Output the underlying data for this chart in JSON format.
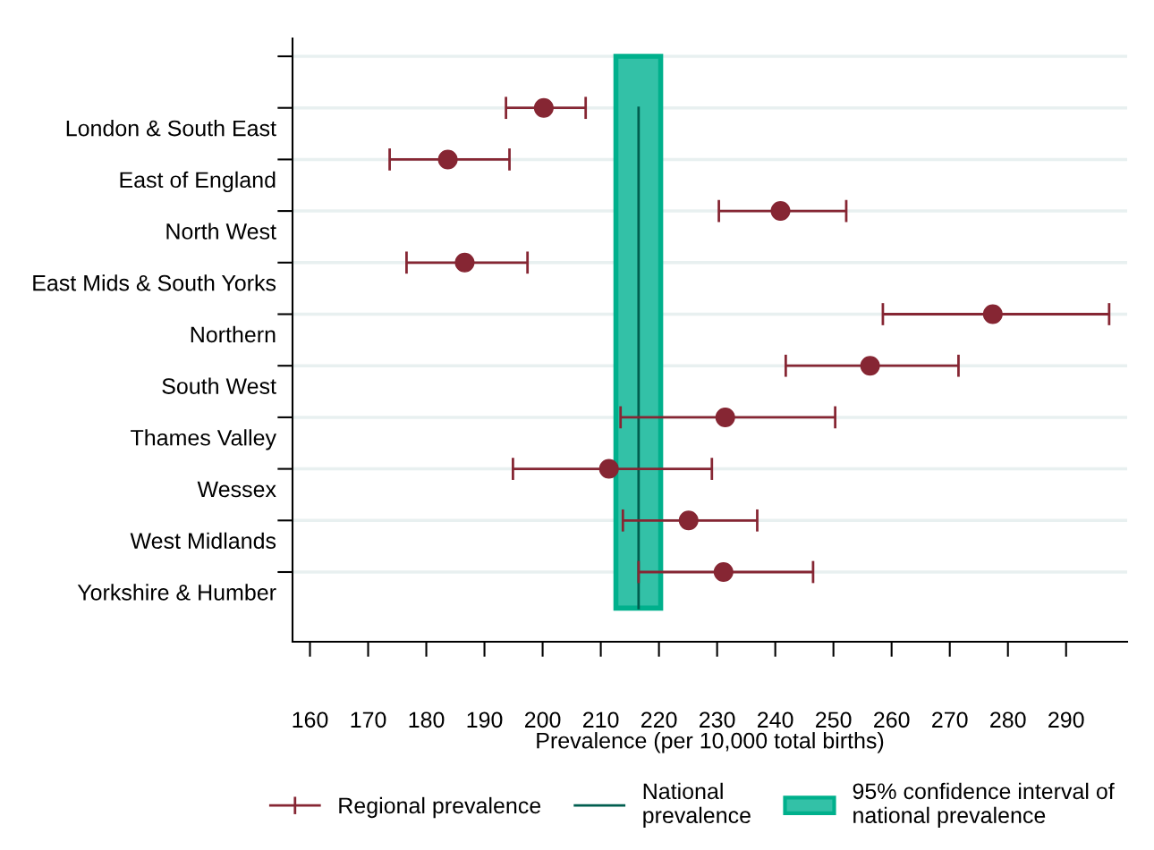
{
  "chart_data": {
    "type": "scatter",
    "orientation": "horizontal",
    "xlabel": "Prevalence (per 10,000 total births)",
    "categories": [
      null,
      "London & South East",
      "East of England",
      "North West",
      "East Mids & South Yorks",
      "Northern",
      "South West",
      "Thames Valley",
      "Wessex",
      "West Midlands",
      "Yorkshire & Humber"
    ],
    "series": [
      {
        "name": "Regional prevalence",
        "color": "#862633",
        "values": [
          null,
          200.2,
          183.7,
          240.9,
          186.6,
          277.4,
          256.3,
          231.4,
          211.4,
          225.1,
          231.1
        ],
        "errors": [
          null,
          [
            193.7,
            207.4
          ],
          [
            173.7,
            194.3
          ],
          [
            230.3,
            252.2
          ],
          [
            176.6,
            197.4
          ],
          [
            258.5,
            297.4
          ],
          [
            241.8,
            271.5
          ],
          [
            213.4,
            250.3
          ],
          [
            194.9,
            229.1
          ],
          [
            213.8,
            236.9
          ],
          [
            216.5,
            246.5
          ]
        ]
      }
    ],
    "ref_lines": [
      {
        "axis": "x",
        "value": 216.5,
        "label": "National\nprevalence",
        "color": "#005e4f"
      }
    ],
    "bands": [
      {
        "axis": "x",
        "from": 212.6,
        "to": 220.3,
        "label": "95% confidence interval of\nnational prevalence",
        "color": "#33c1a7"
      }
    ],
    "xlim": [
      157,
      300.5
    ],
    "xticks": [
      160,
      170,
      180,
      190,
      200,
      210,
      220,
      230,
      240,
      250,
      260,
      270,
      280,
      290
    ],
    "marker": "circle",
    "grid": "y",
    "legend": "bottom"
  }
}
